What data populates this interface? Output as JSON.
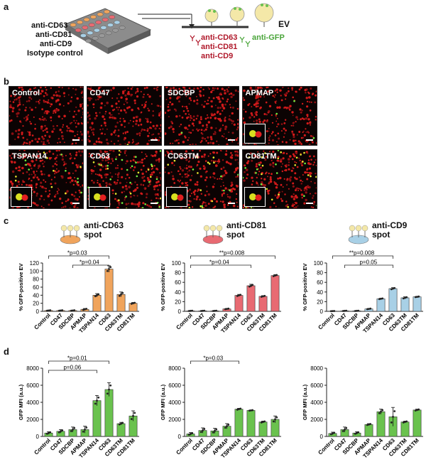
{
  "panels": {
    "a": "a",
    "b": "b",
    "c": "c",
    "d": "d"
  },
  "panel_a": {
    "plate_labels": [
      "anti-CD63",
      "anti-CD81",
      "anti-CD9",
      "Isotype control"
    ],
    "ev_label": "EV",
    "antibodies_red": [
      "anti-CD63",
      "anti-CD81",
      "anti-CD9"
    ],
    "antibody_green": "anti-GFP",
    "plate_row_colors": [
      "#f0a45c",
      "#e86a72",
      "#a8d0e6",
      "#9a9a9a"
    ]
  },
  "panel_b": {
    "images": [
      {
        "label": "Control",
        "greens": 0,
        "inset": false
      },
      {
        "label": "CD47",
        "greens": 1,
        "inset": false
      },
      {
        "label": "SDCBP",
        "greens": 1,
        "inset": false
      },
      {
        "label": "APMAP",
        "greens": 3,
        "inset": true
      },
      {
        "label": "TSPAN14",
        "greens": 25,
        "inset": true
      },
      {
        "label": "CD63",
        "greens": 40,
        "inset": true
      },
      {
        "label": "CD63TM",
        "greens": 22,
        "inset": true
      },
      {
        "label": "CD81TM",
        "greens": 40,
        "inset": true
      }
    ]
  },
  "spots": [
    {
      "title": "anti-CD63",
      "sub": "spot",
      "color": "#f0a45c"
    },
    {
      "title": "anti-CD81",
      "sub": "spot",
      "color": "#e86a72"
    },
    {
      "title": "anti-CD9",
      "sub": "spot",
      "color": "#a8d0e6"
    }
  ],
  "chart_data": [
    {
      "type": "bar",
      "panel": "c",
      "categories": [
        "Control",
        "CD47",
        "SDCBP",
        "APMAP",
        "TSPAN14",
        "CD63",
        "CD63TM",
        "CD81TM"
      ],
      "values": [
        2,
        2,
        2,
        5,
        40,
        105,
        42,
        20
      ],
      "errors": [
        1,
        1,
        1,
        2,
        4,
        8,
        6,
        2
      ],
      "ylabel": "% GFP-positive EV",
      "ylim": [
        0,
        120
      ],
      "yticks": [
        0,
        20,
        40,
        60,
        80,
        100,
        120
      ],
      "color": "#f0a45c",
      "brackets": [
        {
          "from": 0,
          "to": 5,
          "stars": "*",
          "text": "p=0.03"
        },
        {
          "from": 2,
          "to": 5,
          "stars": "*",
          "text": "p=0.04"
        }
      ]
    },
    {
      "type": "bar",
      "panel": "c",
      "categories": [
        "Control",
        "CD47",
        "SDCBP",
        "APMAP",
        "TSPAN14",
        "CD63",
        "CD63TM",
        "CD81TM"
      ],
      "values": [
        1,
        1,
        1,
        5,
        33,
        53,
        31,
        74
      ],
      "errors": [
        0.5,
        0.5,
        0.5,
        1,
        2,
        3,
        1.5,
        2
      ],
      "ylabel": "% GFP-positive EV",
      "ylim": [
        0,
        100
      ],
      "yticks": [
        0,
        20,
        40,
        60,
        80,
        100
      ],
      "color": "#e86a72",
      "brackets": [
        {
          "from": 0,
          "to": 7,
          "stars": "**",
          "text": "p=0.008"
        },
        {
          "from": 0,
          "to": 5,
          "stars": "*",
          "text": "p=0.04"
        }
      ]
    },
    {
      "type": "bar",
      "panel": "c",
      "categories": [
        "Control",
        "CD47",
        "SDCBP",
        "APMAP",
        "TSPAN14",
        "CD63",
        "CD63TM",
        "CD81TM"
      ],
      "values": [
        0.5,
        1,
        1,
        5,
        26,
        47,
        28,
        30
      ],
      "errors": [
        0.3,
        0.5,
        0.5,
        1,
        1,
        2,
        2,
        1
      ],
      "ylabel": "% GFP-positive EV",
      "ylim": [
        0,
        100
      ],
      "yticks": [
        0,
        20,
        40,
        60,
        80,
        100
      ],
      "color": "#a8d0e6",
      "brackets": [
        {
          "from": 0,
          "to": 5,
          "stars": "**",
          "text": "p=0.008"
        },
        {
          "from": 1,
          "to": 5,
          "stars": "",
          "text": "p=0.05"
        }
      ]
    },
    {
      "type": "bar",
      "panel": "d",
      "categories": [
        "Control",
        "CD47",
        "SDCBP",
        "APMAP",
        "TSPAN14",
        "CD63",
        "CD63TM",
        "CD81TM"
      ],
      "values": [
        400,
        600,
        800,
        800,
        4200,
        5500,
        1500,
        2400
      ],
      "errors": [
        150,
        200,
        300,
        400,
        600,
        800,
        150,
        600
      ],
      "ylabel": "GFP MFI (a.u.)",
      "ylim": [
        0,
        8000
      ],
      "yticks": [
        0,
        2000,
        4000,
        6000,
        8000
      ],
      "color": "#6ac24e",
      "brackets": [
        {
          "from": 0,
          "to": 5,
          "stars": "*",
          "text": "p=0.01"
        },
        {
          "from": 0,
          "to": 4,
          "stars": "",
          "text": "p=0.06"
        }
      ]
    },
    {
      "type": "bar",
      "panel": "d",
      "categories": [
        "Control",
        "CD47",
        "SDCBP",
        "APMAP",
        "TSPAN14",
        "CD63",
        "CD63TM",
        "CD81TM"
      ],
      "values": [
        300,
        700,
        650,
        1200,
        3200,
        3050,
        1700,
        2000
      ],
      "errors": [
        150,
        300,
        300,
        300,
        100,
        50,
        100,
        400
      ],
      "ylabel": "GFP MFI (a.u.)",
      "ylim": [
        0,
        8000
      ],
      "yticks": [
        0,
        2000,
        4000,
        6000,
        8000
      ],
      "color": "#6ac24e",
      "brackets": [
        {
          "from": 0,
          "to": 4,
          "stars": "*",
          "text": "p=0.03"
        }
      ]
    },
    {
      "type": "bar",
      "panel": "d",
      "categories": [
        "Control",
        "CD47",
        "SDCBP",
        "APMAP",
        "TSPAN14",
        "CD63",
        "CD63TM",
        "CD81TM"
      ],
      "values": [
        350,
        800,
        400,
        1400,
        2900,
        2300,
        1700,
        3100
      ],
      "errors": [
        150,
        300,
        150,
        100,
        300,
        1100,
        100,
        100
      ],
      "ylabel": "GFP MFI (a.u.)",
      "ylim": [
        0,
        8000
      ],
      "yticks": [
        0,
        2000,
        4000,
        6000,
        8000
      ],
      "color": "#6ac24e",
      "brackets": []
    }
  ]
}
